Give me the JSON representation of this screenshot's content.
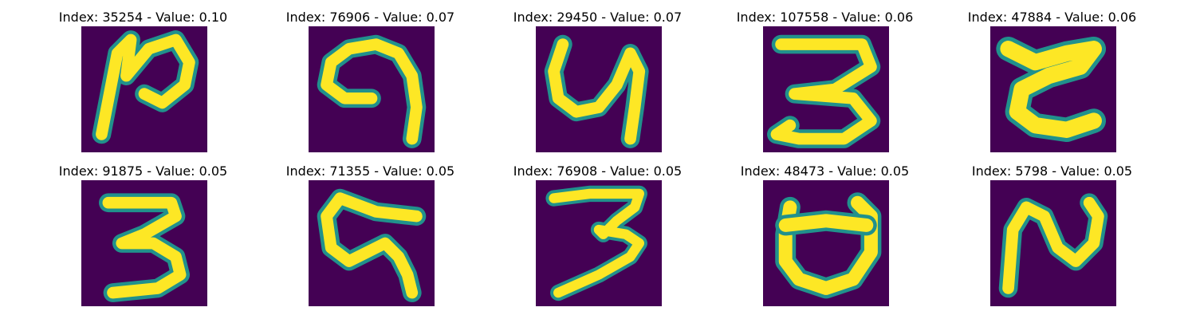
{
  "figure": {
    "panels": [
      {
        "title": "Index: 35254 - Value: 0.10",
        "index": 35254,
        "value": 0.1,
        "glyph": "stroke-a"
      },
      {
        "title": "Index: 76906 - Value: 0.07",
        "index": 76906,
        "value": 0.07,
        "glyph": "stroke-b"
      },
      {
        "title": "Index: 29450 - Value: 0.07",
        "index": 29450,
        "value": 0.07,
        "glyph": "stroke-c"
      },
      {
        "title": "Index: 107558 - Value: 0.06",
        "index": 107558,
        "value": 0.06,
        "glyph": "stroke-d"
      },
      {
        "title": "Index: 47884 - Value: 0.06",
        "index": 47884,
        "value": 0.06,
        "glyph": "stroke-e"
      },
      {
        "title": "Index: 91875 - Value: 0.05",
        "index": 91875,
        "value": 0.05,
        "glyph": "stroke-f"
      },
      {
        "title": "Index: 71355 - Value: 0.05",
        "index": 71355,
        "value": 0.05,
        "glyph": "stroke-g"
      },
      {
        "title": "Index: 76908 - Value: 0.05",
        "index": 76908,
        "value": 0.05,
        "glyph": "stroke-h"
      },
      {
        "title": "Index: 48473 - Value: 0.05",
        "index": 48473,
        "value": 0.05,
        "glyph": "stroke-i"
      },
      {
        "title": "Index: 5798 - Value: 0.05",
        "index": 5798,
        "value": 0.05,
        "glyph": "stroke-j"
      }
    ],
    "colors": {
      "background": "#440154",
      "stroke_core": "#fde725",
      "stroke_edge": "#21918c"
    }
  }
}
